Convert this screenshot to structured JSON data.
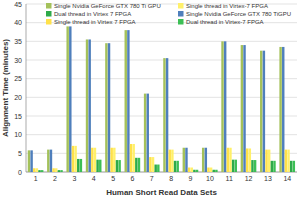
{
  "chart_data": {
    "type": "bar",
    "x_label": "Human Short Read Data Sets",
    "y_label": "Alignment Time (minutes)",
    "categories": [
      "1",
      "2",
      "3",
      "4",
      "5",
      "6",
      "7",
      "8",
      "9",
      "10",
      "11",
      "12",
      "13",
      "14"
    ],
    "series": [
      {
        "name": "Single Nvidia GeForce GTX 780 Ti GPU",
        "color": "#a4c15a",
        "values": [
          5.8,
          6,
          39,
          35.5,
          34.5,
          38,
          21,
          30.5,
          6.5,
          6.5,
          35,
          34,
          32.5,
          33.5
        ]
      },
      {
        "name": "Single Nvidia GeForce GTX 780 TiGPU",
        "color": "#4f7fbc",
        "values": [
          5.8,
          6,
          39,
          35.5,
          34.5,
          38,
          21,
          30.5,
          6.5,
          6.5,
          35,
          34,
          32.5,
          33.5
        ]
      },
      {
        "name": "Single thread in Virtex 7 FPGA",
        "color": "#ffe14a",
        "values": [
          1,
          1,
          7,
          6.5,
          6.5,
          7.5,
          4,
          6,
          1.2,
          1.2,
          6.5,
          6.3,
          6,
          6
        ]
      },
      {
        "name": "Single thread in Virtex-7 FPGA",
        "color": "#fff06a",
        "values": [
          1,
          1,
          7,
          6.5,
          6.5,
          7.5,
          4,
          6,
          1.2,
          1.2,
          6.5,
          6.3,
          6,
          6
        ]
      },
      {
        "name": "Dual thread in Virtex 7 FPGA",
        "color": "#2eaa4a",
        "values": [
          0.5,
          0.5,
          3.5,
          3.3,
          3.2,
          3.8,
          2,
          3,
          0.6,
          0.6,
          3.3,
          3.2,
          3,
          3
        ]
      },
      {
        "name": "Dual thread in Virtex-7 FPGA",
        "color": "#3cbf55",
        "values": [
          0.5,
          0.5,
          3.5,
          3.3,
          3.2,
          3.8,
          2,
          3,
          0.6,
          0.6,
          3.3,
          3.2,
          3,
          3
        ]
      }
    ],
    "ylim": [
      0,
      45
    ],
    "yticks": [
      0,
      5,
      10,
      15,
      20,
      25,
      30,
      35,
      40,
      45
    ],
    "grid": true,
    "legend": "top"
  }
}
